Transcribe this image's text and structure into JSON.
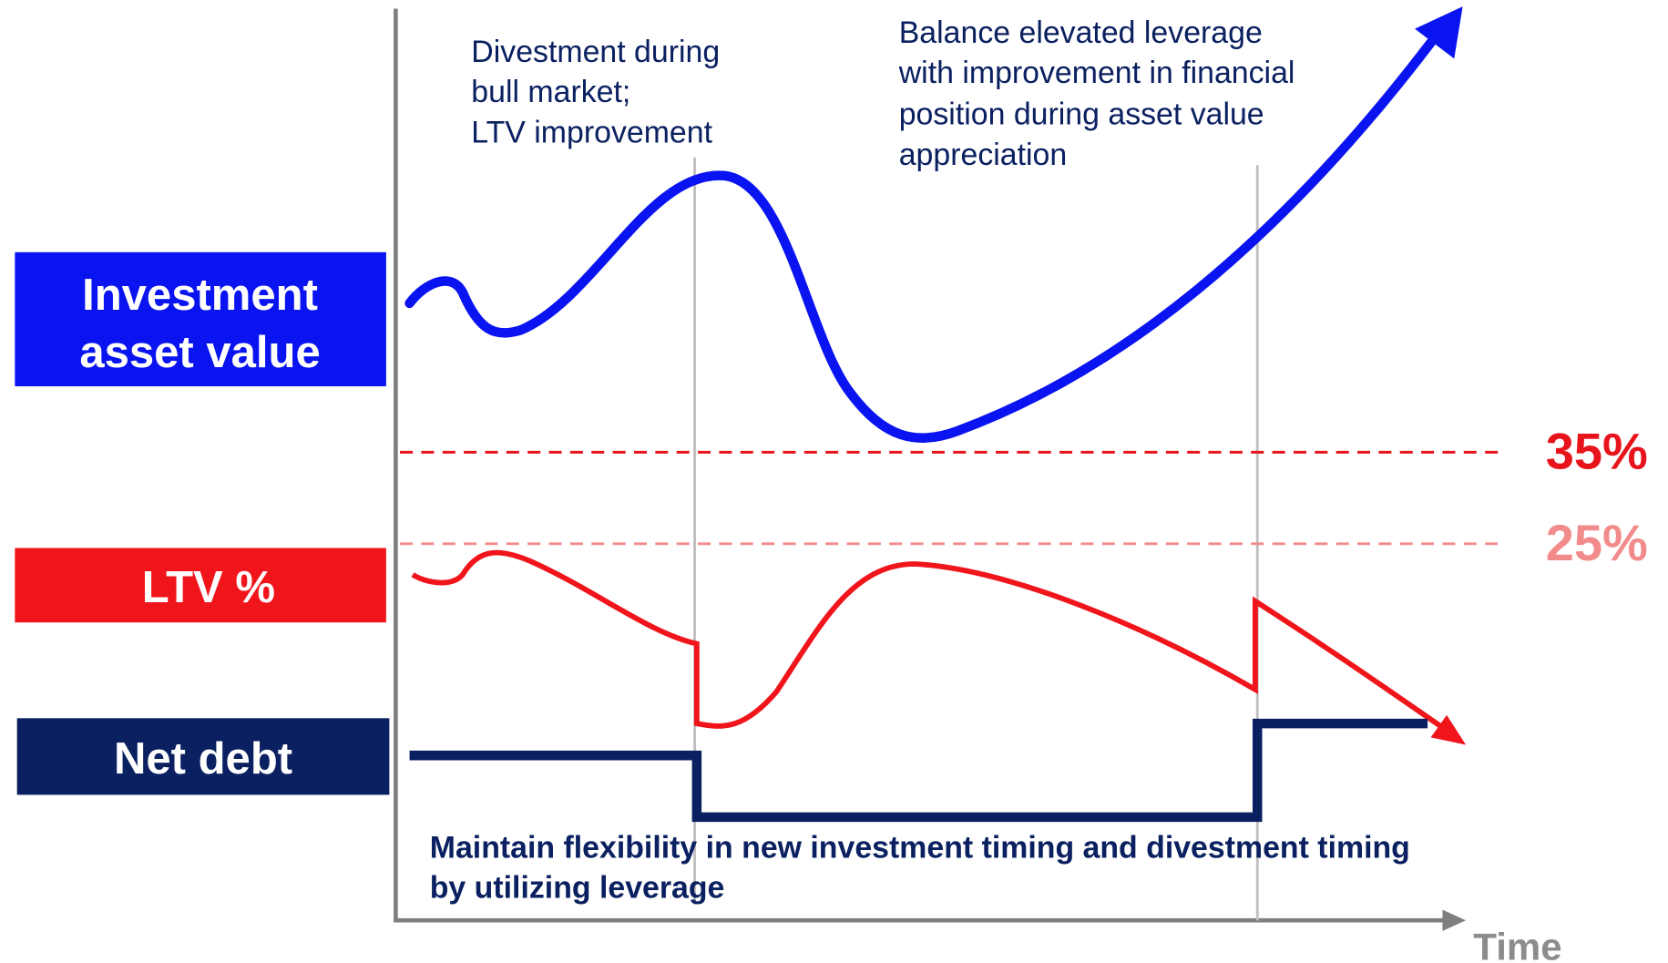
{
  "labels": {
    "asset": [
      "Investment",
      "asset value"
    ],
    "ltv": "LTV %",
    "debt": "Net debt"
  },
  "thresholds": {
    "high": "35%",
    "low": "25%"
  },
  "annotations": {
    "divestment": [
      "Divestment during",
      "bull market;",
      "LTV improvement"
    ],
    "balance": [
      "Balance elevated leverage",
      "with improvement in financial",
      "position during asset value",
      "appreciation"
    ],
    "flexibility": [
      "Maintain flexibility in new investment timing and divestment timing",
      "by utilizing leverage"
    ]
  },
  "axis": {
    "x": "Time"
  }
}
